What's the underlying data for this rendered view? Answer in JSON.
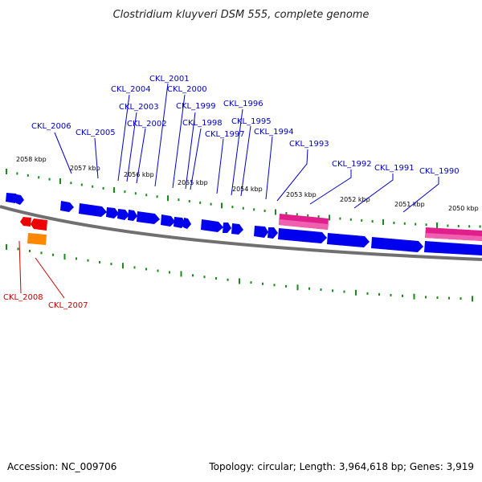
{
  "title": "Clostridium kluyveri DSM 555, complete genome",
  "footer": {
    "accession": "Accession: NC_009706",
    "summary": "Topology: circular; Length: 3,964,618 bp; Genes: 3,919"
  },
  "colors": {
    "forward_gene": "#0000ee",
    "reverse_gene": "#ee0000",
    "rna_feature": "#ff8800",
    "repeat_region": "#e01e8c",
    "backbone": "#707070",
    "ticks": "#1a8a1a",
    "forward_label": "#0000cc",
    "reverse_label": "#cc0000"
  },
  "kbp_markers": [
    {
      "label": "2058 kbp"
    },
    {
      "label": "2057 kbp"
    },
    {
      "label": "2056 kbp"
    },
    {
      "label": "2055 kbp"
    },
    {
      "label": "2054 kbp"
    },
    {
      "label": "2053 kbp"
    },
    {
      "label": "2052 kbp"
    },
    {
      "label": "2051 kbp"
    },
    {
      "label": "2050 kbp"
    }
  ],
  "forward_labels": [
    "CKL_2006",
    "CKL_2005",
    "CKL_2004",
    "CKL_2003",
    "CKL_2002",
    "CKL_2001",
    "CKL_2000",
    "CKL_1999",
    "CKL_1998",
    "CKL_1997",
    "CKL_1996",
    "CKL_1995",
    "CKL_1994",
    "CKL_1993",
    "CKL_1992",
    "CKL_1991",
    "CKL_1990"
  ],
  "reverse_labels": [
    "CKL_2008",
    "CKL_2007"
  ]
}
